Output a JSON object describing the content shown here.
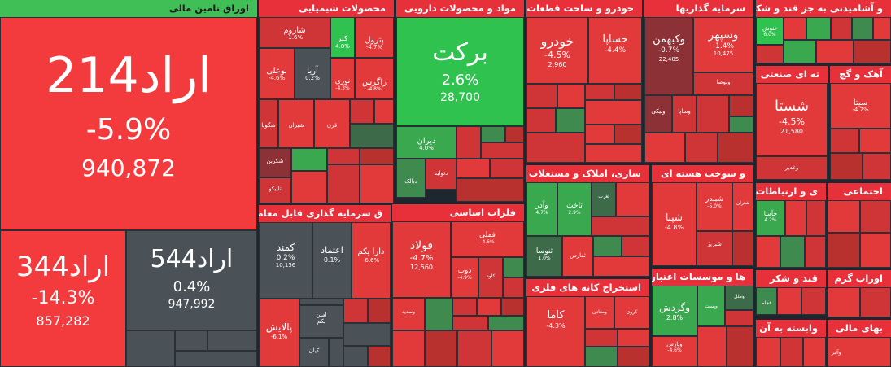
{
  "sections": {
    "bonds": "اوراق تامین مالی",
    "chemicals": "محصولات شیمیایی",
    "pharma": "مواد و محصولات دارویی",
    "auto": "خودرو و ساخت قطعات",
    "holding": "سرمایه گذاریها",
    "sugar_agri": "و آشامیدنی به جز قند و شکر",
    "etf": "ق سرمایه گذاری قابل معامله",
    "metals": "فلزات اساسی",
    "construction": "سازی، املاک و مستغلات",
    "coal": "و سوخت هسته ای",
    "industrial_chem": "ته ای صنعتی",
    "iron": "آهک و گچ",
    "telecom": "ی و ارتباطات",
    "social": "اجتماعی",
    "mining": "استخراج کانه های فلزی",
    "banks": "ها و موسسات اعتباری",
    "sugar": "قند و شکر",
    "tile": "اوراب گرم",
    "related": "وابسته به آن",
    "financial": "بهای مالی"
  },
  "tiles": {
    "arad214": {
      "name": "اراد214",
      "change": "-5.9%",
      "volume": "940,872"
    },
    "arad344": {
      "name": "اراد344",
      "change": "-14.3%",
      "volume": "857,282"
    },
    "arad544": {
      "name": "اراد544",
      "change": "0.4%",
      "volume": "947,992"
    },
    "barekat": {
      "name": "برکت",
      "change": "2.6%",
      "volume": "28,700"
    },
    "khodro": {
      "name": "خودرو",
      "change": "-4.5%",
      "volume": "2,960"
    },
    "khsapa": {
      "name": "خساپا",
      "change": "-4.4%"
    },
    "vasepahr": {
      "name": "وسپهر",
      "change": "-1.4%",
      "volume": "10,475"
    },
    "vakbahman": {
      "name": "وکبهمن",
      "change": "-0.7%",
      "volume": "22,405"
    },
    "vatousa": {
      "name": "وتوصا"
    },
    "vasapa": {
      "name": "وساپا"
    },
    "vanikai": {
      "name": "ونیکی"
    },
    "shasta": {
      "name": "شستا",
      "change": "-4.5%",
      "volume": "21,580"
    },
    "vaghadir": {
      "name": "وغدیر"
    },
    "sita": {
      "name": "سیتا",
      "change": "-4.7%"
    },
    "ghgosh": {
      "name": "غنوش",
      "change": "6.0%"
    },
    "shiraz": {
      "name": "شاروم",
      "change": "-1.6%"
    },
    "kala": {
      "name": "کلر",
      "change": "4.8%"
    },
    "petrol": {
      "name": "پترول",
      "change": "-4.7%"
    },
    "buali": {
      "name": "بوعلی",
      "change": "-4.6%"
    },
    "arya": {
      "name": "آریا",
      "change": "0.2%"
    },
    "nouri": {
      "name": "نوری",
      "change": "-4.3%"
    },
    "zagros": {
      "name": "زاگرس",
      "change": "-4.8%"
    },
    "shgoya": {
      "name": "شگویا"
    },
    "shiran": {
      "name": "شیران"
    },
    "kram": {
      "name": "قرن"
    },
    "shakarbon": {
      "name": "شکربن"
    },
    "tapico": {
      "name": "تاپیکو"
    },
    "diran": {
      "name": "دیران",
      "change": "4.0%"
    },
    "dalak": {
      "name": "دتولید"
    },
    "dabalak": {
      "name": "دبالک"
    },
    "kamand": {
      "name": "کمند",
      "change": "0.2%",
      "volume": "10,156"
    },
    "etemad": {
      "name": "اعتماد",
      "change": "0.1%"
    },
    "darayekom": {
      "name": "دارا یکم",
      "change": "-6.6%"
    },
    "palayesh": {
      "name": "پالایش",
      "change": "-6.1%"
    },
    "aminyekom": {
      "name": "امین\nیکم"
    },
    "kian": {
      "name": "کیان"
    },
    "foolad": {
      "name": "فولاد",
      "change": "-4.7%",
      "volume": "12,560"
    },
    "fameli": {
      "name": "فملی",
      "change": "-4.6%"
    },
    "zob": {
      "name": "ذوب",
      "change": "-4.9%"
    },
    "kaveh": {
      "name": "کاوه"
    },
    "vasadid": {
      "name": "وسدید"
    },
    "vazar": {
      "name": "وآذر",
      "change": "4.7%"
    },
    "sakhat": {
      "name": "ثاخت",
      "change": "2.9%"
    },
    "tagari": {
      "name": "ثغرب"
    },
    "sanusa": {
      "name": "ثنوسا",
      "change": "1.0%"
    },
    "safars": {
      "name": "ثفارس"
    },
    "shepna": {
      "name": "شپنا",
      "change": "-4.8%"
    },
    "shebandar": {
      "name": "شبندر",
      "change": "-5.0%"
    },
    "shetran": {
      "name": "شتران"
    },
    "shebriz": {
      "name": "شبریز"
    },
    "hasa": {
      "name": "حآسا",
      "change": "4.2%"
    },
    "kama": {
      "name": "کاما",
      "change": "-4.3%"
    },
    "kaervi": {
      "name": "کروی"
    },
    "vamaden": {
      "name": "ومعادن"
    },
    "vagardesh": {
      "name": "وگردش",
      "change": "2.8%"
    },
    "vapast": {
      "name": "وپست"
    },
    "vamellal": {
      "name": "وملل"
    },
    "vaparas": {
      "name": "وپارس",
      "change": "-4.6%"
    },
    "ghajam": {
      "name": "قجام"
    },
    "vaalbor": {
      "name": "وآلبر"
    }
  }
}
